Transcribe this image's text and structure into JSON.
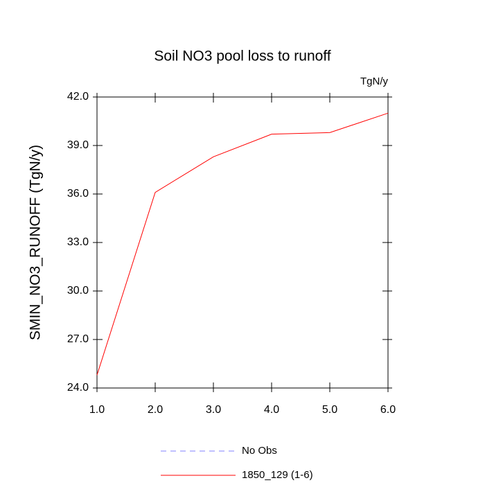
{
  "chart_data": {
    "type": "line",
    "title": "Soil NO3 pool loss to runoff",
    "units": "TgN/y",
    "y_label": "SMIN_NO3_RUNOFF  (TgN/y)",
    "x": [
      1,
      2,
      3,
      4,
      5,
      6
    ],
    "series": [
      {
        "name": "No Obs",
        "color": "#8080ff",
        "dashed": true,
        "values": [
          null,
          null,
          null,
          null,
          null,
          null
        ]
      },
      {
        "name": "1850_129 (1-6)",
        "color": "#ff0000",
        "dashed": false,
        "values": [
          24.8,
          36.1,
          38.3,
          39.7,
          39.8,
          41.0
        ]
      }
    ],
    "xlim": [
      1,
      6
    ],
    "xticks": [
      {
        "value": 1,
        "label": "1.0"
      },
      {
        "value": 2,
        "label": "2.0"
      },
      {
        "value": 3,
        "label": "3.0"
      },
      {
        "value": 4,
        "label": "4.0"
      },
      {
        "value": 5,
        "label": "5.0"
      },
      {
        "value": 6,
        "label": "6.0"
      }
    ],
    "ylim": [
      24,
      42
    ],
    "yticks": [
      {
        "value": 24,
        "label": "24.0"
      },
      {
        "value": 27,
        "label": "27.0"
      },
      {
        "value": 30,
        "label": "30.0"
      },
      {
        "value": 33,
        "label": "33.0"
      },
      {
        "value": 36,
        "label": "36.0"
      },
      {
        "value": 39,
        "label": "39.0"
      },
      {
        "value": 42,
        "label": "42.0"
      }
    ],
    "grid": false
  }
}
